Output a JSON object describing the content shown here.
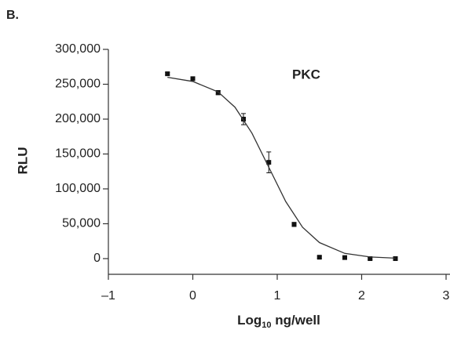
{
  "chart_data": {
    "type": "scatter",
    "panel_label": "B.",
    "annotation": "PKC",
    "ylabel": "RLU",
    "xlabel": {
      "base": "Log",
      "sub": "10",
      "rest": " ng/well"
    },
    "xlim": [
      -1,
      3
    ],
    "xticks": [
      {
        "value": -1,
        "label": "–1"
      },
      0,
      1,
      2,
      3
    ],
    "ylim": [
      -22500,
      300000
    ],
    "yticks": [
      {
        "value": 0,
        "label": "0"
      },
      {
        "value": 50000,
        "label": "50,000"
      },
      {
        "value": 100000,
        "label": "100,000"
      },
      {
        "value": 150000,
        "label": "150,000"
      },
      {
        "value": 200000,
        "label": "200,000"
      },
      {
        "value": 250000,
        "label": "250,000"
      },
      {
        "value": 300000,
        "label": "300,000"
      }
    ],
    "grid": false,
    "series": [
      {
        "kind": "points",
        "color": "#111",
        "x": [
          -0.3,
          0,
          0.3,
          0.6,
          0.9,
          1.2,
          1.5,
          1.8,
          2.1,
          2.4
        ],
        "values": [
          265000,
          258000,
          238000,
          200000,
          138000,
          49000,
          2000,
          1500,
          0,
          0
        ],
        "errors": [
          2000,
          2000,
          3000,
          8000,
          15000,
          3000,
          1500,
          1500,
          1500,
          1500
        ]
      },
      {
        "kind": "curve",
        "color": "#333",
        "x": [
          -0.3,
          0,
          0.3,
          0.5,
          0.7,
          0.9,
          1.1,
          1.3,
          1.5,
          1.8,
          2.1,
          2.4
        ],
        "values": [
          260000,
          254000,
          239000,
          217000,
          180000,
          131000,
          82000,
          45000,
          23000,
          7500,
          2400,
          700
        ]
      }
    ]
  }
}
